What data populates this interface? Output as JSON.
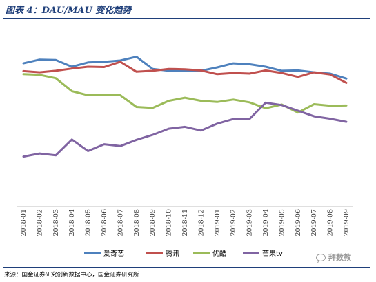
{
  "header": {
    "title": "图表 4：DAU/MAU 变化趋势"
  },
  "footer": {
    "source": "来源：国金证券研究创新数据中心，国金证券研究所"
  },
  "watermark": {
    "text": "拜数教",
    "icon": "wechat-icon"
  },
  "chart_data": {
    "type": "line",
    "title": "图表 4：DAU/MAU 变化趋势",
    "xlabel": "",
    "ylabel": "",
    "grid": false,
    "legend_position": "bottom",
    "x": [
      "2018-01",
      "2018-02",
      "2018-03",
      "2018-04",
      "2018-05",
      "2018-06",
      "2018-07",
      "2018-08",
      "2018-09",
      "2018-10",
      "2018-11",
      "2018-12",
      "2019-01",
      "2019-02",
      "2019-03",
      "2019-04",
      "2019-05",
      "2019-06",
      "2019-07",
      "2019-08",
      "2019-09"
    ],
    "ylim": [
      0,
      1
    ],
    "series": [
      {
        "name": "爱奇艺",
        "color": "#4e81bd",
        "values": [
          0.77,
          0.79,
          0.788,
          0.752,
          0.775,
          0.778,
          0.785,
          0.805,
          0.74,
          0.73,
          0.732,
          0.73,
          0.748,
          0.77,
          0.765,
          0.752,
          0.73,
          0.732,
          0.722,
          0.715,
          0.688
        ]
      },
      {
        "name": "腾讯",
        "color": "#c0504e",
        "values": [
          0.728,
          0.722,
          0.73,
          0.742,
          0.752,
          0.75,
          0.778,
          0.725,
          0.73,
          0.74,
          0.738,
          0.732,
          0.712,
          0.718,
          0.715,
          0.732,
          0.718,
          0.697,
          0.722,
          0.71,
          0.665
        ]
      },
      {
        "name": "优酷",
        "color": "#9bbb59",
        "values": [
          0.712,
          0.708,
          0.69,
          0.62,
          0.598,
          0.6,
          0.598,
          0.535,
          0.53,
          0.568,
          0.585,
          0.568,
          0.562,
          0.575,
          0.56,
          0.528,
          0.548,
          0.505,
          0.55,
          0.542,
          0.543
        ]
      },
      {
        "name": "芒果tv",
        "color": "#8064a2",
        "values": [
          0.268,
          0.285,
          0.275,
          0.36,
          0.298,
          0.335,
          0.325,
          0.358,
          0.385,
          0.418,
          0.428,
          0.408,
          0.445,
          0.47,
          0.47,
          0.558,
          0.545,
          0.515,
          0.485,
          0.472,
          0.455
        ]
      }
    ]
  }
}
